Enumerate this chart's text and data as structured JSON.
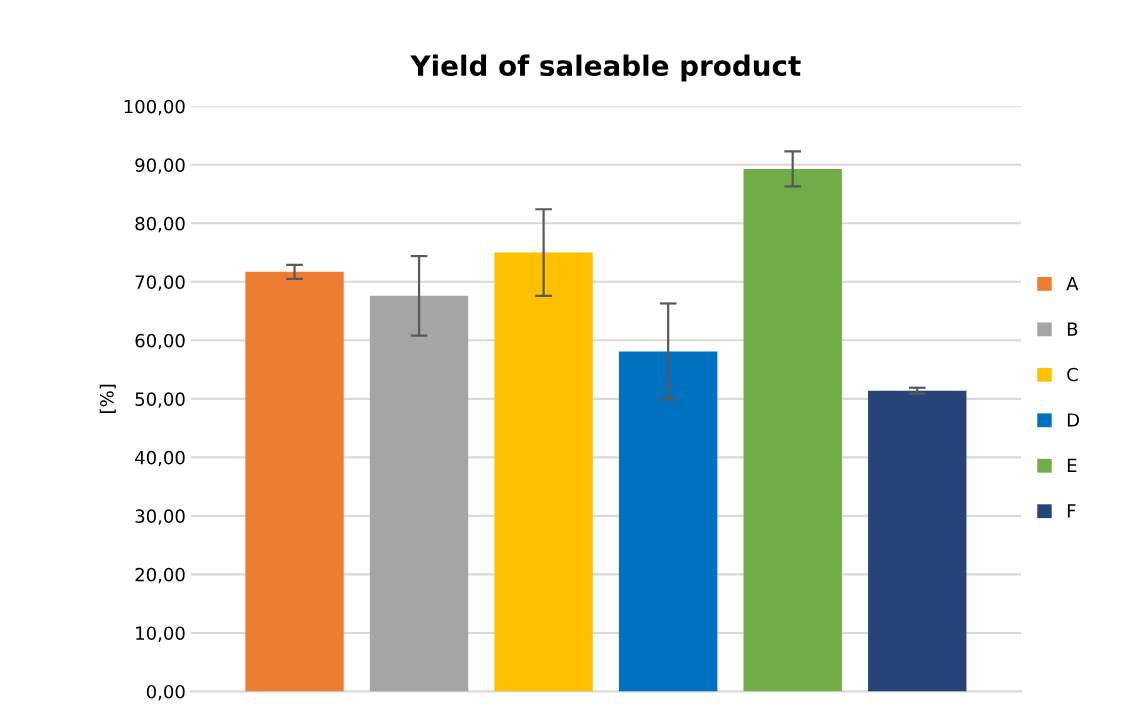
{
  "chart_data": {
    "type": "bar",
    "title": "Yield of saleable product",
    "ylabel": "[%]",
    "categories": [
      null
    ],
    "series": [
      {
        "name": "A",
        "color": "#ed7d31",
        "values": [
          71.7
        ],
        "errors": [
          1.2
        ]
      },
      {
        "name": "B",
        "color": "#a5a5a5",
        "values": [
          67.6
        ],
        "errors": [
          6.8
        ]
      },
      {
        "name": "C",
        "color": "#ffc000",
        "values": [
          75.0
        ],
        "errors": [
          7.4
        ]
      },
      {
        "name": "D",
        "color": "#0070c0",
        "values": [
          58.1
        ],
        "errors": [
          8.2
        ]
      },
      {
        "name": "E",
        "color": "#70ad47",
        "values": [
          89.3
        ],
        "errors": [
          3.0
        ]
      },
      {
        "name": "F",
        "color": "#264478",
        "values": [
          51.4
        ],
        "errors": [
          0.5
        ]
      }
    ],
    "ylim": [
      0,
      100
    ],
    "yticks": [
      {
        "value": 0,
        "label": "0,00"
      },
      {
        "value": 10,
        "label": "10,00"
      },
      {
        "value": 20,
        "label": "20,00"
      },
      {
        "value": 30,
        "label": "30,00"
      },
      {
        "value": 40,
        "label": "40,00"
      },
      {
        "value": 50,
        "label": "50,00"
      },
      {
        "value": 60,
        "label": "60,00"
      },
      {
        "value": 70,
        "label": "70,00"
      },
      {
        "value": 80,
        "label": "80,00"
      },
      {
        "value": 90,
        "label": "90,00"
      },
      {
        "value": 100,
        "label": "100,00"
      }
    ],
    "grid": "y",
    "legend": "right"
  }
}
